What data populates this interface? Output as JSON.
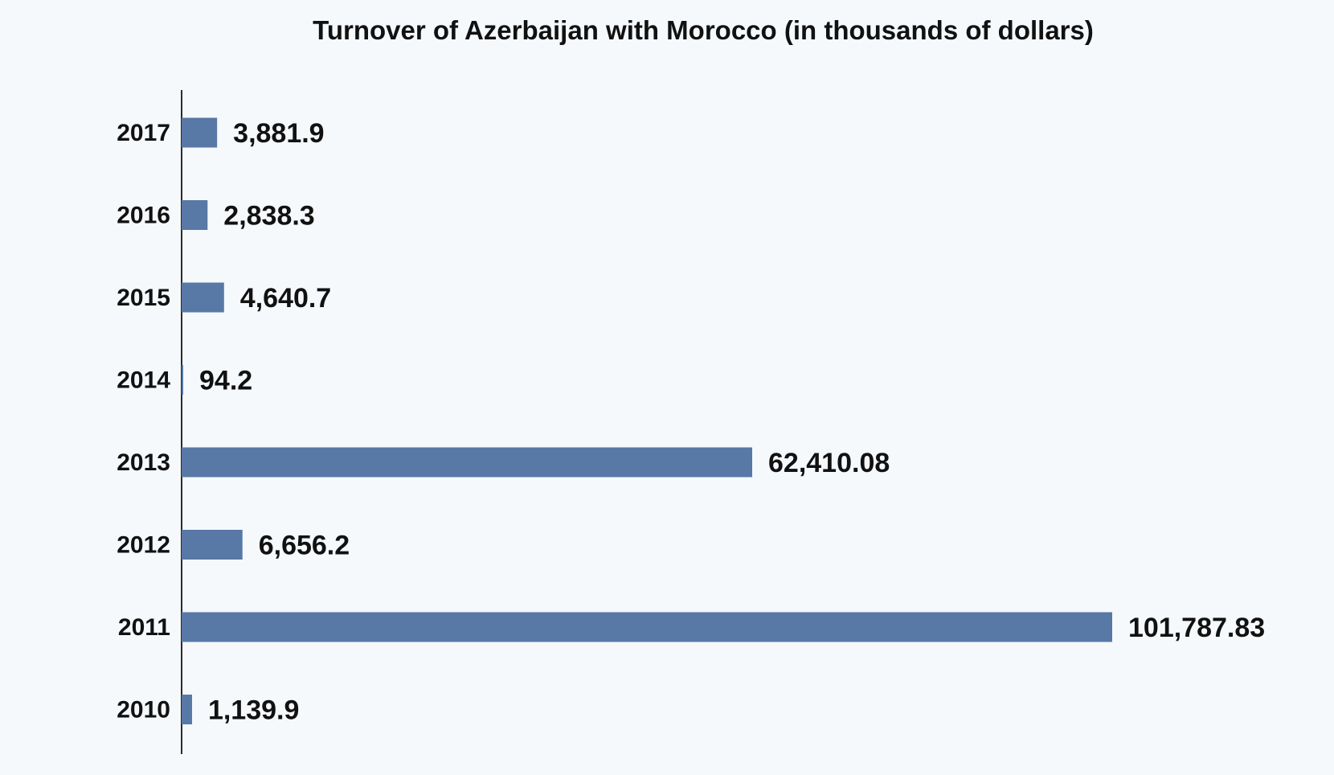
{
  "chart_data": {
    "type": "bar",
    "orientation": "horizontal",
    "title": "Turnover of Azerbaijan with Morocco (in thousands of dollars)",
    "xlabel": "",
    "ylabel": "",
    "categories": [
      "2017",
      "2016",
      "2015",
      "2014",
      "2013",
      "2012",
      "2011",
      "2010"
    ],
    "values": [
      3881.9,
      2838.3,
      4640.7,
      94.2,
      62410.08,
      6656.2,
      101787.83,
      1139.9
    ],
    "value_labels": [
      "3,881.9",
      "2,838.3",
      "4,640.7",
      "94.2",
      "62,410.08",
      "6,656.2",
      "101,787.83",
      "1,139.9"
    ],
    "xlim": [
      0,
      101787.83
    ],
    "grid": false,
    "legend": "none",
    "bar_color": "#5878a6"
  }
}
